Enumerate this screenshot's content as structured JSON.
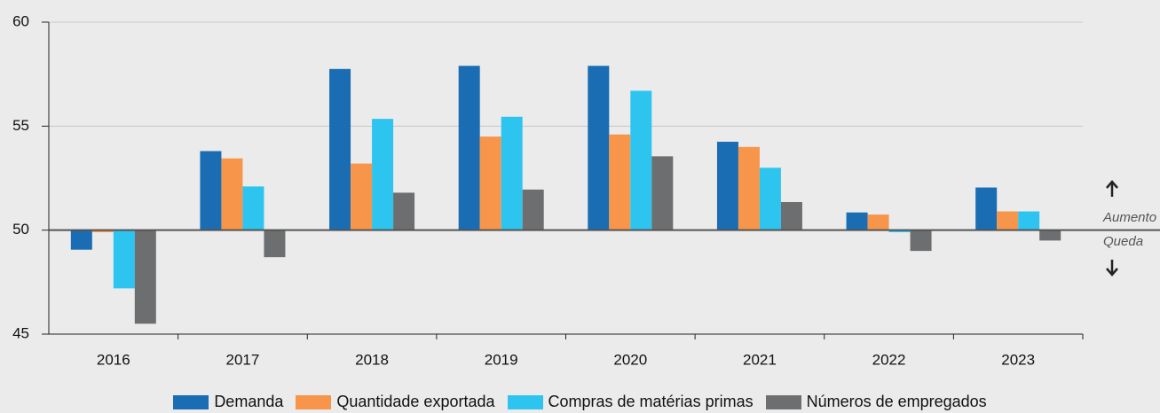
{
  "chart_data": {
    "type": "bar",
    "categories": [
      "2016",
      "2017",
      "2018",
      "2019",
      "2020",
      "2021",
      "2022",
      "2023"
    ],
    "series": [
      {
        "name": "Demanda",
        "color": "#1a6db3",
        "values": [
          49.06,
          53.8,
          57.75,
          57.9,
          57.9,
          54.25,
          50.85,
          52.05
        ]
      },
      {
        "name": "Quantidade exportada",
        "color": "#f7964a",
        "values": [
          49.9,
          53.45,
          53.2,
          54.5,
          54.6,
          54.0,
          50.75,
          50.9
        ]
      },
      {
        "name": "Compras de matérias primas",
        "color": "#2ec4f0",
        "values": [
          47.2,
          52.1,
          55.35,
          55.45,
          56.7,
          53.0,
          49.9,
          50.9
        ]
      },
      {
        "name": "Números de empregados",
        "color": "#6d6e70",
        "values": [
          45.5,
          48.7,
          51.8,
          51.95,
          53.55,
          51.35,
          49.0,
          49.5
        ]
      }
    ],
    "baseline": 50,
    "ylim": [
      45,
      60
    ],
    "yticks": [
      45,
      50,
      55,
      60
    ],
    "grid": true,
    "annotations": {
      "up": "Aumento",
      "down": "Queda"
    }
  }
}
